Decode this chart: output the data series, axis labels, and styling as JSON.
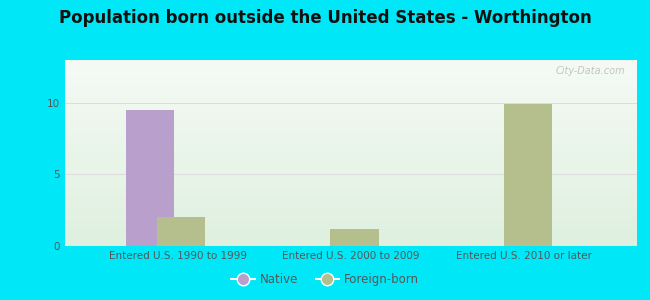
{
  "title": "Population born outside the United States - Worthington",
  "categories": [
    "Entered U.S. 1990 to 1999",
    "Entered U.S. 2000 to 2009",
    "Entered U.S. 2010 or later"
  ],
  "native_values": [
    9.5,
    0,
    0
  ],
  "foreign_values": [
    2.0,
    1.2,
    9.9
  ],
  "native_color": "#b89fcc",
  "foreign_color": "#b5bf8e",
  "ylim": [
    0,
    13
  ],
  "yticks": [
    0,
    5,
    10
  ],
  "background_outer": "#00e8f8",
  "grid_color": "#dddddd",
  "title_fontsize": 12,
  "tick_fontsize": 7.5,
  "legend_native": "Native",
  "legend_foreign": "Foreign-born",
  "watermark": "City-Data.com",
  "bar_width": 0.28,
  "bar_gap": 0.04,
  "xlim": [
    -0.65,
    2.65
  ]
}
